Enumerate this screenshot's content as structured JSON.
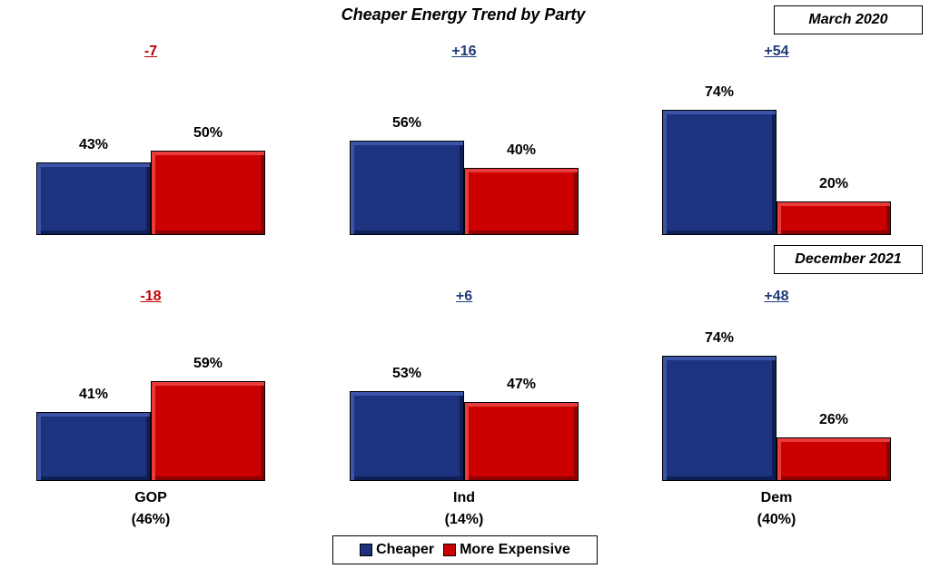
{
  "chart_data": {
    "type": "bar",
    "title": "Cheaper Energy Trend by Party",
    "categories": [
      "GOP",
      "Ind",
      "Dem"
    ],
    "category_shares": [
      "(46%)",
      "(14%)",
      "(40%)"
    ],
    "legend": [
      "Cheaper",
      "More Expensive"
    ],
    "legend_placement": "bottom-center",
    "colors": {
      "Cheaper": "#1d3380",
      "More Expensive": "#cc0000",
      "negative_diff": "#c00000",
      "positive_diff": "#1f3a7a"
    },
    "panels": [
      {
        "period": "March 2020",
        "differences": [
          "-7",
          "+16",
          "+54"
        ],
        "series": [
          {
            "name": "Cheaper",
            "values": [
              43,
              56,
              74
            ],
            "labels": [
              "43%",
              "56%",
              "74%"
            ]
          },
          {
            "name": "More Expensive",
            "values": [
              50,
              40,
              20
            ],
            "labels": [
              "50%",
              "40%",
              "20%"
            ]
          }
        ]
      },
      {
        "period": "December 2021",
        "differences": [
          "-18",
          "+6",
          "+48"
        ],
        "series": [
          {
            "name": "Cheaper",
            "values": [
              41,
              53,
              74
            ],
            "labels": [
              "41%",
              "53%",
              "74%"
            ]
          },
          {
            "name": "More Expensive",
            "values": [
              59,
              47,
              26
            ],
            "labels": [
              "59%",
              "47%",
              "26%"
            ]
          }
        ]
      }
    ]
  }
}
